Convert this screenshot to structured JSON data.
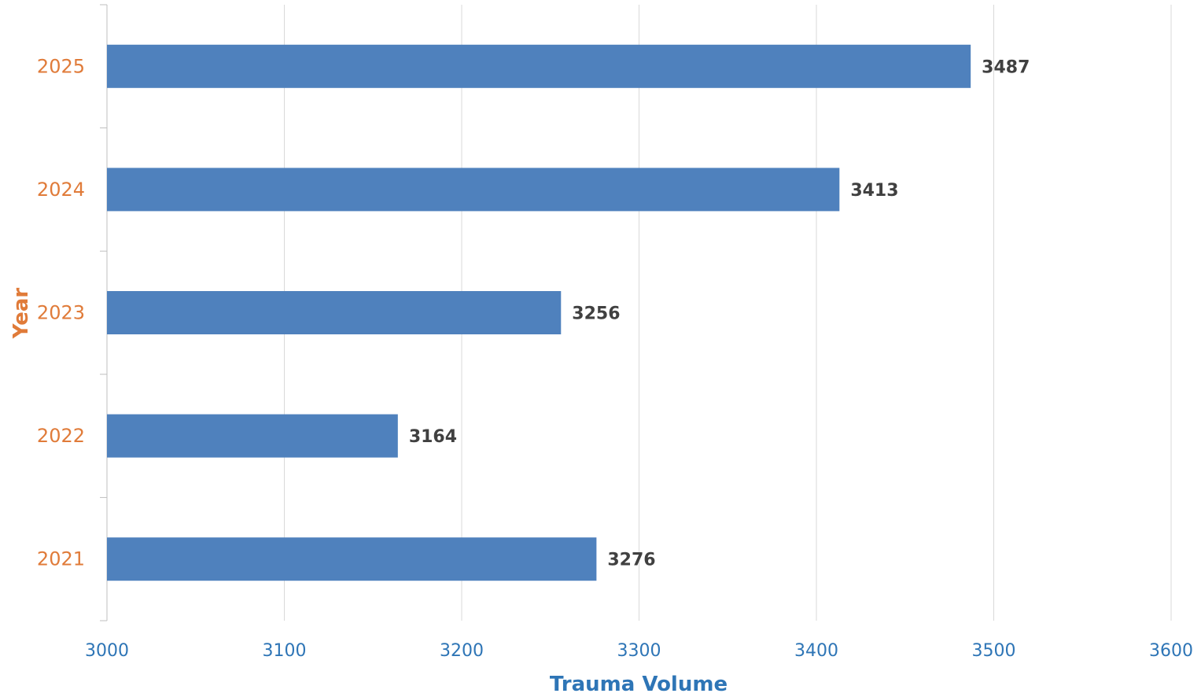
{
  "chart_data": {
    "type": "bar",
    "orientation": "horizontal",
    "categories": [
      "2021",
      "2022",
      "2023",
      "2024",
      "2025"
    ],
    "values": [
      3276,
      3164,
      3256,
      3413,
      3487
    ],
    "data_labels": [
      "3276",
      "3164",
      "3256",
      "3413",
      "3487"
    ],
    "xlabel": "Trauma Volume",
    "ylabel": "Year",
    "xlim": [
      3000,
      3600
    ],
    "x_ticks": [
      "3000",
      "3100",
      "3200",
      "3300",
      "3400",
      "3500",
      "3600"
    ],
    "grid": "vertical",
    "legend": "none",
    "colors": {
      "bar": "#4f81bd",
      "x_ticks": "#2e75b6",
      "y_ticks": "#e07b39",
      "xlabel": "#2e75b6",
      "ylabel": "#e07b39",
      "data_labels": "#404040",
      "grid": "#d9d9d9",
      "axis": "#bfbfbf"
    }
  }
}
